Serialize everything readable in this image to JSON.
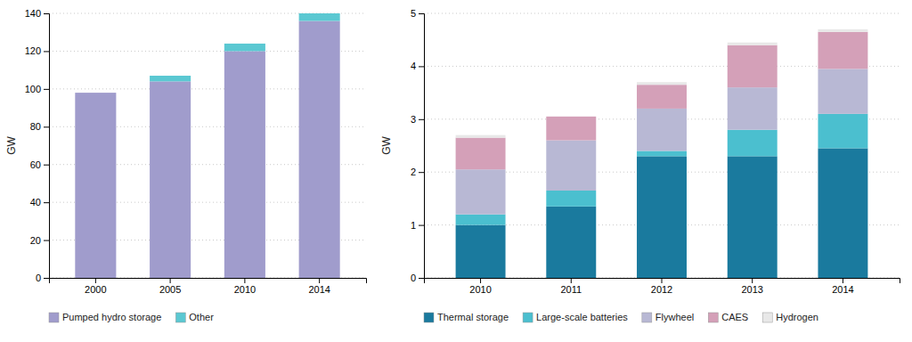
{
  "chart_data": [
    {
      "type": "bar",
      "stacked": true,
      "categories": [
        "2000",
        "2005",
        "2010",
        "2014"
      ],
      "series": [
        {
          "name": "Pumped hydro storage",
          "color": "#a09ccc",
          "values": [
            98,
            104,
            120,
            136
          ]
        },
        {
          "name": "Other",
          "color": "#5bc8d2",
          "values": [
            0,
            3,
            4,
            4
          ]
        }
      ],
      "ylabel": "GW",
      "ylim": [
        0,
        140
      ],
      "yticks": [
        0,
        20,
        40,
        60,
        80,
        100,
        120,
        140
      ],
      "grid": true,
      "legend": "bottom"
    },
    {
      "type": "bar",
      "stacked": true,
      "categories": [
        "2010",
        "2011",
        "2012",
        "2013",
        "2014"
      ],
      "series": [
        {
          "name": "Thermal storage",
          "color": "#1a7a9e",
          "values": [
            1.0,
            1.35,
            2.3,
            2.3,
            2.45
          ]
        },
        {
          "name": "Large-scale batteries",
          "color": "#4bbfcf",
          "values": [
            0.2,
            0.3,
            0.1,
            0.5,
            0.65
          ]
        },
        {
          "name": "Flywheel",
          "color": "#b8b8d4",
          "values": [
            0.85,
            0.95,
            0.8,
            0.8,
            0.85
          ]
        },
        {
          "name": "CAES",
          "color": "#d4a0b8",
          "values": [
            0.6,
            0.45,
            0.45,
            0.8,
            0.7
          ]
        },
        {
          "name": "Hydrogen",
          "color": "#e8e8e8",
          "values": [
            0.05,
            0.0,
            0.05,
            0.05,
            0.05
          ]
        }
      ],
      "ylabel": "GW",
      "ylim": [
        0,
        5
      ],
      "yticks": [
        0,
        1,
        2,
        3,
        4,
        5
      ],
      "grid": true,
      "legend": "bottom"
    }
  ]
}
